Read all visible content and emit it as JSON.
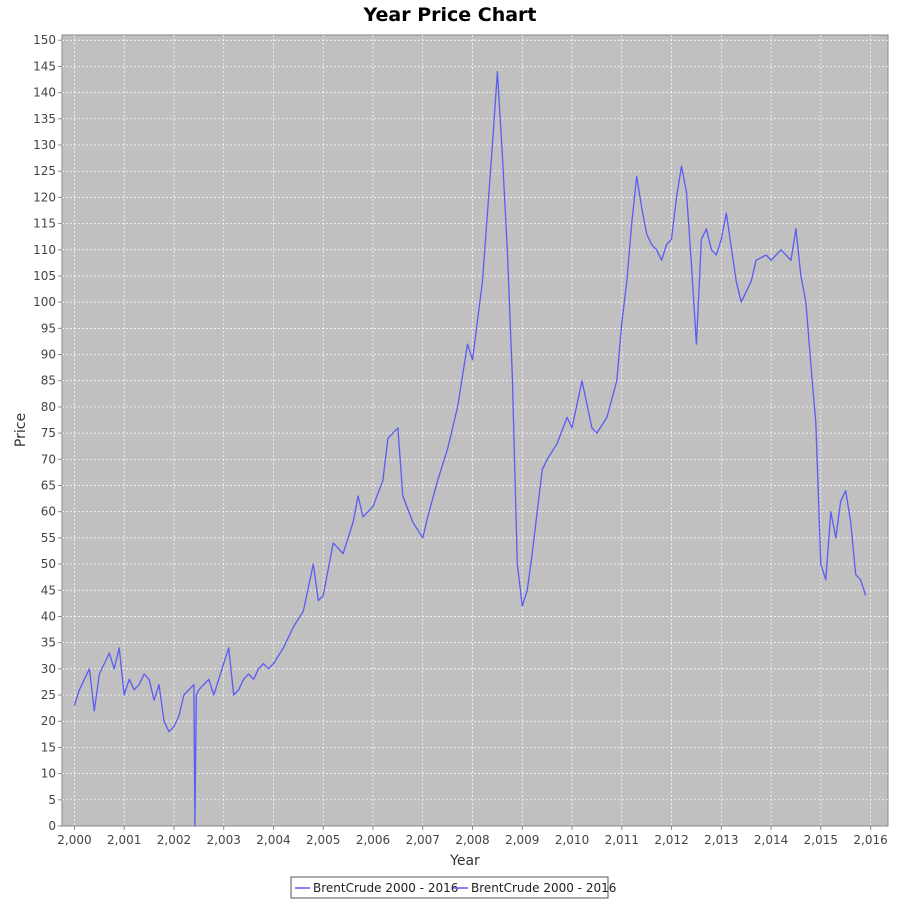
{
  "chart_data": {
    "type": "line",
    "title": "Year Price Chart",
    "xlabel": "Year",
    "ylabel": "Price",
    "xlim": [
      1999.75,
      2016.35
    ],
    "ylim": [
      0,
      151
    ],
    "x_ticks": [
      2000,
      2001,
      2002,
      2003,
      2004,
      2005,
      2006,
      2007,
      2008,
      2009,
      2010,
      2011,
      2012,
      2013,
      2014,
      2015,
      2016
    ],
    "x_tick_labels": [
      "2,000",
      "2,001",
      "2,002",
      "2,003",
      "2,004",
      "2,005",
      "2,006",
      "2,007",
      "2,008",
      "2,009",
      "2,010",
      "2,011",
      "2,012",
      "2,013",
      "2,014",
      "2,015",
      "2,016"
    ],
    "y_ticks": [
      0,
      5,
      10,
      15,
      20,
      25,
      30,
      35,
      40,
      45,
      50,
      55,
      60,
      65,
      70,
      75,
      80,
      85,
      90,
      95,
      100,
      105,
      110,
      115,
      120,
      125,
      130,
      135,
      140,
      145,
      150
    ],
    "grid": true,
    "legend_position": "bottom",
    "colors": {
      "series": "#5b5bf5",
      "plot_background": "#c0c0c0",
      "grid": "#ffffff"
    },
    "series": [
      {
        "name": "BrentCrude 2000 - 2016",
        "x": [
          2000.0,
          2000.1,
          2000.2,
          2000.3,
          2000.4,
          2000.5,
          2000.6,
          2000.7,
          2000.8,
          2000.9,
          2001.0,
          2001.1,
          2001.2,
          2001.3,
          2001.4,
          2001.5,
          2001.6,
          2001.7,
          2001.8,
          2001.9,
          2002.0,
          2002.1,
          2002.2,
          2002.3,
          2002.4,
          2002.42,
          2002.45,
          2002.5,
          2002.6,
          2002.7,
          2002.8,
          2002.9,
          2003.0,
          2003.1,
          2003.2,
          2003.3,
          2003.4,
          2003.5,
          2003.6,
          2003.7,
          2003.8,
          2003.9,
          2004.0,
          2004.2,
          2004.4,
          2004.6,
          2004.8,
          2004.9,
          2005.0,
          2005.2,
          2005.4,
          2005.6,
          2005.7,
          2005.8,
          2006.0,
          2006.2,
          2006.3,
          2006.5,
          2006.6,
          2006.8,
          2007.0,
          2007.1,
          2007.3,
          2007.5,
          2007.7,
          2007.9,
          2008.0,
          2008.2,
          2008.4,
          2008.5,
          2008.6,
          2008.7,
          2008.8,
          2008.9,
          2009.0,
          2009.1,
          2009.2,
          2009.4,
          2009.5,
          2009.7,
          2009.9,
          2010.0,
          2010.2,
          2010.4,
          2010.5,
          2010.7,
          2010.9,
          2011.0,
          2011.1,
          2011.2,
          2011.3,
          2011.4,
          2011.5,
          2011.6,
          2011.7,
          2011.8,
          2011.9,
          2012.0,
          2012.1,
          2012.2,
          2012.3,
          2012.4,
          2012.5,
          2012.6,
          2012.7,
          2012.8,
          2012.9,
          2013.0,
          2013.1,
          2013.3,
          2013.4,
          2013.6,
          2013.7,
          2013.9,
          2014.0,
          2014.2,
          2014.4,
          2014.5,
          2014.6,
          2014.7,
          2014.8,
          2014.9,
          2015.0,
          2015.1,
          2015.2,
          2015.3,
          2015.4,
          2015.5,
          2015.6,
          2015.7,
          2015.8,
          2015.9
        ],
        "y": [
          23,
          26,
          28,
          30,
          22,
          29,
          31,
          33,
          30,
          34,
          25,
          28,
          26,
          27,
          29,
          28,
          24,
          27,
          20,
          18,
          19,
          21,
          25,
          26,
          27,
          0,
          25,
          26,
          27,
          28,
          25,
          28,
          31,
          34,
          25,
          26,
          28,
          29,
          28,
          30,
          31,
          30,
          31,
          34,
          38,
          41,
          50,
          43,
          44,
          54,
          52,
          58,
          63,
          59,
          61,
          66,
          74,
          76,
          63,
          58,
          55,
          59,
          66,
          72,
          80,
          92,
          89,
          104,
          130,
          144,
          128,
          110,
          86,
          50,
          42,
          45,
          52,
          68,
          70,
          73,
          78,
          76,
          85,
          76,
          75,
          78,
          85,
          96,
          104,
          115,
          124,
          118,
          113,
          111,
          110,
          108,
          111,
          112,
          120,
          126,
          121,
          107,
          92,
          112,
          114,
          110,
          109,
          112,
          117,
          104,
          100,
          104,
          108,
          109,
          108,
          110,
          108,
          114,
          105,
          100,
          88,
          77,
          50,
          47,
          60,
          55,
          62,
          64,
          58,
          48,
          47,
          44
        ]
      }
    ],
    "legend_entries": [
      "BrentCrude 2000 - 2016",
      "BrentCrude 2000 - 2016"
    ]
  }
}
